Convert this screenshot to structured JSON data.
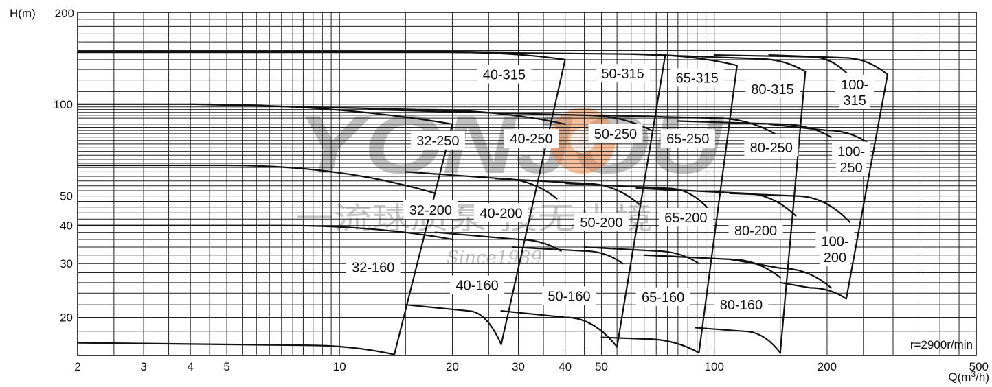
{
  "chart_data": {
    "type": "line",
    "title": "",
    "xlabel": "Q(m³/h)",
    "ylabel": "H(m)",
    "annotation": "r=2900r/min",
    "x_scale": "log",
    "y_scale": "log",
    "xlim": [
      2,
      500
    ],
    "ylim": [
      15,
      200
    ],
    "grid": true,
    "x_ticks": [
      {
        "value": 2,
        "label": "2"
      },
      {
        "value": 3,
        "label": "3"
      },
      {
        "value": 4,
        "label": "4"
      },
      {
        "value": 5,
        "label": "5"
      },
      {
        "value": 10,
        "label": "10"
      },
      {
        "value": 20,
        "label": "20"
      },
      {
        "value": 30,
        "label": "30"
      },
      {
        "value": 40,
        "label": "40"
      },
      {
        "value": 50,
        "label": "50"
      },
      {
        "value": 100,
        "label": "100"
      },
      {
        "value": 200,
        "label": "200"
      },
      {
        "value": 500,
        "label": "500"
      }
    ],
    "y_ticks": [
      {
        "value": 200,
        "label": "200"
      },
      {
        "value": 100,
        "label": "100"
      },
      {
        "value": 50,
        "label": "50"
      },
      {
        "value": 40,
        "label": "40"
      },
      {
        "value": 30,
        "label": "30"
      },
      {
        "value": 20,
        "label": "20"
      }
    ],
    "watermark": {
      "brand": "YONJOU",
      "chinese": "一流球质泵  技无止境",
      "since": "Since1989"
    },
    "curves": [
      {
        "id": "c1",
        "points": [
          [
            2,
            148
          ],
          [
            20,
            148
          ],
          [
            40,
            140
          ]
        ]
      },
      {
        "id": "c2",
        "points": [
          [
            20,
            148
          ],
          [
            60,
            146
          ],
          [
            115,
            134
          ]
        ]
      },
      {
        "id": "c3",
        "points": [
          [
            60,
            146
          ],
          [
            130,
            141
          ],
          [
            175,
            128
          ]
        ]
      },
      {
        "id": "c4",
        "points": [
          [
            100,
            145
          ],
          [
            180,
            143
          ],
          [
            225,
            127
          ]
        ]
      },
      {
        "id": "c5",
        "points": [
          [
            140,
            145
          ],
          [
            220,
            142
          ],
          [
            290,
            125
          ]
        ]
      },
      {
        "id": "c6",
        "points": [
          [
            2,
            100
          ],
          [
            4,
            100
          ],
          [
            20,
            86
          ]
        ]
      },
      {
        "id": "c7",
        "points": [
          [
            4,
            100
          ],
          [
            16,
            96
          ],
          [
            40,
            86
          ]
        ]
      },
      {
        "id": "c8",
        "points": [
          [
            12,
            96
          ],
          [
            45,
            92
          ],
          [
            68,
            82
          ]
        ]
      },
      {
        "id": "c9",
        "points": [
          [
            50,
            92
          ],
          [
            100,
            90
          ],
          [
            145,
            80
          ]
        ]
      },
      {
        "id": "c10",
        "points": [
          [
            80,
            88
          ],
          [
            150,
            86
          ],
          [
            205,
            78
          ]
        ]
      },
      {
        "id": "c11",
        "points": [
          [
            140,
            86
          ],
          [
            200,
            82
          ],
          [
            260,
            74
          ]
        ]
      },
      {
        "id": "c12",
        "points": [
          [
            2,
            63
          ],
          [
            5,
            63
          ],
          [
            18,
            51
          ]
        ]
      },
      {
        "id": "c13",
        "points": [
          [
            15,
            60
          ],
          [
            27,
            57
          ],
          [
            38,
            49
          ]
        ]
      },
      {
        "id": "c14",
        "points": [
          [
            26,
            57
          ],
          [
            45,
            55
          ],
          [
            63,
            47
          ]
        ]
      },
      {
        "id": "c15",
        "points": [
          [
            40,
            55
          ],
          [
            75,
            53
          ],
          [
            97,
            45
          ]
        ]
      },
      {
        "id": "c16",
        "points": [
          [
            62,
            53
          ],
          [
            120,
            51
          ],
          [
            165,
            43
          ]
        ]
      },
      {
        "id": "c17",
        "points": [
          [
            110,
            51
          ],
          [
            165,
            50
          ],
          [
            230,
            41
          ]
        ]
      },
      {
        "id": "c18",
        "points": [
          [
            2,
            40
          ],
          [
            7,
            40
          ],
          [
            20,
            36
          ]
        ]
      },
      {
        "id": "c19",
        "points": [
          [
            18,
            38
          ],
          [
            30,
            36
          ],
          [
            39,
            33
          ]
        ]
      },
      {
        "id": "c20",
        "points": [
          [
            29,
            34
          ],
          [
            45,
            33
          ],
          [
            57,
            30
          ]
        ]
      },
      {
        "id": "c21",
        "points": [
          [
            45,
            34
          ],
          [
            70,
            33
          ],
          [
            91,
            30
          ]
        ]
      },
      {
        "id": "c22",
        "points": [
          [
            65,
            32
          ],
          [
            110,
            31
          ],
          [
            150,
            27
          ]
        ]
      },
      {
        "id": "c23",
        "points": [
          [
            110,
            31
          ],
          [
            150,
            29
          ],
          [
            205,
            25
          ]
        ]
      },
      {
        "id": "c24",
        "points": [
          [
            2,
            16.5
          ],
          [
            8,
            16.2
          ],
          [
            14,
            15.1
          ]
        ]
      },
      {
        "id": "c25",
        "points": [
          [
            15,
            22
          ],
          [
            22,
            21
          ],
          [
            27,
            16.3
          ]
        ]
      },
      {
        "id": "c26",
        "points": [
          [
            27,
            21
          ],
          [
            40,
            20
          ],
          [
            55,
            16
          ]
        ]
      },
      {
        "id": "c27",
        "points": [
          [
            50,
            17.2
          ],
          [
            65,
            17
          ],
          [
            91,
            15.3
          ]
        ]
      },
      {
        "id": "c28",
        "points": [
          [
            89,
            18.5
          ],
          [
            120,
            18
          ],
          [
            150,
            15.3
          ]
        ]
      },
      {
        "id": "c29",
        "points": [
          [
            150,
            26
          ],
          [
            180,
            25
          ],
          [
            225,
            23
          ]
        ]
      }
    ],
    "boundaries": [
      {
        "id": "b1",
        "points": [
          [
            14,
            15.1
          ],
          [
            20,
            86
          ]
        ]
      },
      {
        "id": "b2",
        "points": [
          [
            27,
            16.3
          ],
          [
            40,
            140
          ]
        ]
      },
      {
        "id": "b3",
        "points": [
          [
            55,
            16
          ],
          [
            74,
            145
          ]
        ]
      },
      {
        "id": "b4",
        "points": [
          [
            91,
            15.3
          ],
          [
            115,
            134
          ]
        ]
      },
      {
        "id": "b5",
        "points": [
          [
            150,
            15.3
          ],
          [
            175,
            128
          ]
        ]
      },
      {
        "id": "b6",
        "points": [
          [
            225,
            23
          ],
          [
            290,
            125
          ]
        ]
      }
    ],
    "zones": [
      {
        "label": "40-315",
        "q": 27.5,
        "h": 125
      },
      {
        "label": "50-315",
        "q": 57,
        "h": 126
      },
      {
        "label": "65-315",
        "q": 90,
        "h": 122
      },
      {
        "label": "80-315",
        "q": 143,
        "h": 112
      },
      {
        "label": "100-",
        "q": 237,
        "h": 116
      },
      {
        "label": "315",
        "q": 237,
        "h": 103
      },
      {
        "label": "32-250",
        "q": 18.3,
        "h": 76
      },
      {
        "label": "40-250",
        "q": 32.5,
        "h": 77
      },
      {
        "label": "50-250",
        "q": 54.5,
        "h": 80
      },
      {
        "label": "65-250",
        "q": 85,
        "h": 77
      },
      {
        "label": "80-250",
        "q": 142,
        "h": 72
      },
      {
        "label": "100-",
        "q": 232,
        "h": 70
      },
      {
        "label": "250",
        "q": 232,
        "h": 62
      },
      {
        "label": "32-200",
        "q": 17.5,
        "h": 45
      },
      {
        "label": "40-200",
        "q": 27,
        "h": 44
      },
      {
        "label": "50-200",
        "q": 50,
        "h": 41
      },
      {
        "label": "65-200",
        "q": 84,
        "h": 42.5
      },
      {
        "label": "80-200",
        "q": 129,
        "h": 38.5
      },
      {
        "label": "100-",
        "q": 210,
        "h": 35.5
      },
      {
        "label": "200",
        "q": 210,
        "h": 31.5
      },
      {
        "label": "32-160",
        "q": 12.3,
        "h": 29.2
      },
      {
        "label": "40-160",
        "q": 23.3,
        "h": 25.5
      },
      {
        "label": "50-160",
        "q": 41,
        "h": 23.5
      },
      {
        "label": "65-160",
        "q": 73,
        "h": 23.3
      },
      {
        "label": "80-160",
        "q": 118,
        "h": 22
      }
    ]
  }
}
